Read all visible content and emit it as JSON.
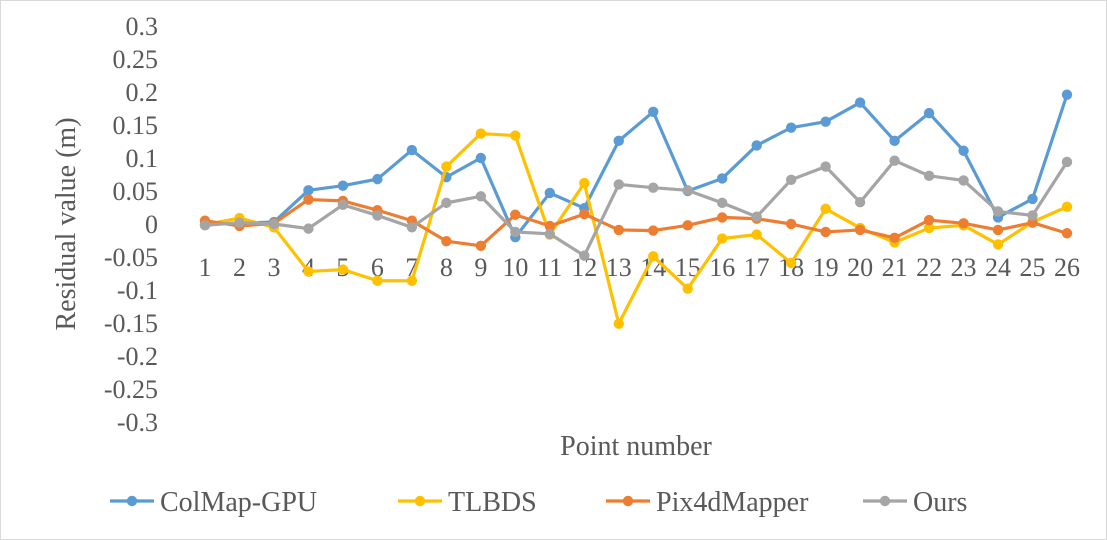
{
  "chart_data": {
    "type": "line",
    "xlabel": "Point number",
    "ylabel": "Residual value (m)",
    "categories": [
      "1",
      "2",
      "3",
      "4",
      "5",
      "6",
      "7",
      "8",
      "9",
      "10",
      "11",
      "12",
      "13",
      "14",
      "15",
      "16",
      "17",
      "18",
      "19",
      "20",
      "21",
      "22",
      "23",
      "24",
      "25",
      "26"
    ],
    "ylim": [
      -0.3,
      0.3
    ],
    "yticks": [
      0.3,
      0.25,
      0.2,
      0.15,
      0.1,
      0.05,
      0,
      -0.05,
      -0.1,
      -0.15,
      -0.2,
      -0.25,
      -0.3
    ],
    "grid": false,
    "legend_position": "bottom",
    "series": [
      {
        "name": "ColMap-GPU",
        "color": "#5b9bd5",
        "values": [
          0.0,
          0.001,
          0.003,
          0.051,
          0.058,
          0.068,
          0.112,
          0.071,
          0.1,
          -0.02,
          0.047,
          0.024,
          0.126,
          0.17,
          0.05,
          0.069,
          0.119,
          0.146,
          0.155,
          0.184,
          0.126,
          0.168,
          0.111,
          0.01,
          0.038,
          0.196
        ]
      },
      {
        "name": "TLBDS",
        "color": "#ffc000",
        "values": [
          -0.001,
          0.009,
          -0.005,
          -0.072,
          -0.069,
          -0.086,
          -0.086,
          0.087,
          0.137,
          0.134,
          -0.016,
          0.062,
          -0.151,
          -0.049,
          -0.098,
          -0.022,
          -0.016,
          -0.059,
          0.023,
          -0.006,
          -0.028,
          -0.006,
          -0.002,
          -0.031,
          0.003,
          0.026
        ]
      },
      {
        "name": "Pix4dMapper",
        "color": "#ed7d31",
        "values": [
          0.005,
          -0.003,
          0.001,
          0.037,
          0.035,
          0.021,
          0.005,
          -0.026,
          -0.033,
          0.014,
          -0.003,
          0.015,
          -0.009,
          -0.01,
          -0.002,
          0.01,
          0.008,
          0.0,
          -0.012,
          -0.009,
          -0.021,
          0.006,
          0.001,
          -0.009,
          0.002,
          -0.014
        ]
      },
      {
        "name": "Ours",
        "color": "#a5a5a5",
        "values": [
          -0.002,
          0.002,
          0.0,
          -0.007,
          0.029,
          0.013,
          -0.005,
          0.032,
          0.042,
          -0.012,
          -0.015,
          -0.048,
          0.06,
          0.055,
          0.051,
          0.032,
          0.011,
          0.067,
          0.087,
          0.033,
          0.096,
          0.073,
          0.066,
          0.019,
          0.013,
          0.094
        ]
      }
    ]
  }
}
